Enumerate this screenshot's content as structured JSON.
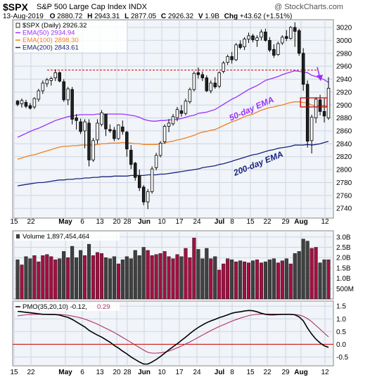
{
  "header": {
    "symbol": "$SPX",
    "name": "S&P 500 Large Cap Index",
    "exchange": "INDX",
    "date": "13-Aug-2019",
    "open_label": "O",
    "open": "2880.72",
    "high_label": "H",
    "high": "2943.31",
    "low_label": "L",
    "low": "2877.05",
    "close_label": "C",
    "close": "2926.32",
    "volume_label": "V",
    "volume": "1.9B",
    "change_label": "Chg",
    "change": "+43.62 (+1.51%)",
    "watermark": "@ StockCharts.com"
  },
  "colors": {
    "up_candle": "#ffffff",
    "down_candle": "#222222",
    "ema50": "#9b30ff",
    "ema100": "#f08020",
    "ema200": "#1a237e",
    "pmo": "#000000",
    "pmo_signal": "#b03060",
    "vol_up": "#a01040",
    "vol_down": "#404040",
    "resistance": "#d00000",
    "panel_bg": "#f1f4f8",
    "grid": "#cdd6e3"
  },
  "chart_data": [
    {
      "type": "candlestick",
      "title": "$SPX (Daily) 2926.32",
      "legend": [
        {
          "label": "$SPX (Daily)",
          "value": "2926.32"
        },
        {
          "label": "EMA(50)",
          "value": "2934.94"
        },
        {
          "label": "EMA(100)",
          "value": "2898.30"
        },
        {
          "label": "EMA(200)",
          "value": "2843.61"
        }
      ],
      "y_ticks": [
        2740,
        2760,
        2780,
        2800,
        2820,
        2840,
        2860,
        2880,
        2900,
        2920,
        2940,
        2960,
        2980,
        3000,
        3020
      ],
      "ylim": [
        2725,
        3032
      ],
      "x_tick_labels": [
        {
          "label": "15",
          "bold": false
        },
        {
          "label": "22",
          "bold": false
        },
        {
          "label": "May",
          "bold": true
        },
        {
          "label": "6",
          "bold": false
        },
        {
          "label": "13",
          "bold": false
        },
        {
          "label": "20",
          "bold": false
        },
        {
          "label": "28",
          "bold": false
        },
        {
          "label": "Jun",
          "bold": true
        },
        {
          "label": "10",
          "bold": false
        },
        {
          "label": "17",
          "bold": false
        },
        {
          "label": "24",
          "bold": false
        },
        {
          "label": "Jul",
          "bold": true
        },
        {
          "label": "8",
          "bold": false
        },
        {
          "label": "15",
          "bold": false
        },
        {
          "label": "22",
          "bold": false
        },
        {
          "label": "29",
          "bold": false
        },
        {
          "label": "Aug",
          "bold": true
        },
        {
          "label": "12",
          "bold": false
        }
      ],
      "candles": [
        [
          2906,
          2908,
          2898,
          2901
        ],
        [
          2902,
          2910,
          2896,
          2907
        ],
        [
          2904,
          2908,
          2895,
          2898
        ],
        [
          2899,
          2903,
          2893,
          2895
        ],
        [
          2897,
          2912,
          2894,
          2910
        ],
        [
          2909,
          2925,
          2905,
          2922
        ],
        [
          2922,
          2938,
          2917,
          2934
        ],
        [
          2933,
          2942,
          2928,
          2939
        ],
        [
          2938,
          2944,
          2930,
          2941
        ],
        [
          2942,
          2955,
          2937,
          2950
        ],
        [
          2950,
          2952,
          2935,
          2937
        ],
        [
          2936,
          2940,
          2905,
          2908
        ],
        [
          2908,
          2928,
          2900,
          2925
        ],
        [
          2924,
          2928,
          2870,
          2878
        ],
        [
          2880,
          2886,
          2862,
          2876
        ],
        [
          2874,
          2879,
          2855,
          2859
        ],
        [
          2860,
          2878,
          2833,
          2874
        ],
        [
          2872,
          2878,
          2805,
          2815
        ],
        [
          2815,
          2849,
          2812,
          2845
        ],
        [
          2846,
          2878,
          2840,
          2872
        ],
        [
          2870,
          2892,
          2867,
          2888
        ],
        [
          2886,
          2886,
          2852,
          2863
        ],
        [
          2862,
          2870,
          2857,
          2860
        ],
        [
          2861,
          2866,
          2844,
          2848
        ],
        [
          2848,
          2870,
          2846,
          2869
        ],
        [
          2866,
          2876,
          2854,
          2859
        ],
        [
          2858,
          2860,
          2820,
          2832
        ],
        [
          2830,
          2838,
          2801,
          2808
        ],
        [
          2810,
          2812,
          2783,
          2788
        ],
        [
          2790,
          2800,
          2767,
          2772
        ],
        [
          2773,
          2776,
          2745,
          2750
        ],
        [
          2750,
          2770,
          2739,
          2766
        ],
        [
          2766,
          2805,
          2763,
          2801
        ],
        [
          2803,
          2826,
          2799,
          2822
        ],
        [
          2822,
          2844,
          2819,
          2841
        ],
        [
          2843,
          2870,
          2840,
          2867
        ],
        [
          2867,
          2878,
          2858,
          2872
        ],
        [
          2871,
          2886,
          2868,
          2882
        ],
        [
          2880,
          2897,
          2875,
          2893
        ],
        [
          2891,
          2900,
          2882,
          2887
        ],
        [
          2887,
          2910,
          2884,
          2906
        ],
        [
          2905,
          2927,
          2902,
          2924
        ],
        [
          2924,
          2952,
          2921,
          2949
        ],
        [
          2950,
          2958,
          2941,
          2947
        ],
        [
          2947,
          2952,
          2937,
          2942
        ],
        [
          2942,
          2946,
          2920,
          2922
        ],
        [
          2922,
          2938,
          2918,
          2934
        ],
        [
          2934,
          2943,
          2925,
          2928
        ],
        [
          2929,
          2952,
          2926,
          2950
        ],
        [
          2952,
          2968,
          2949,
          2965
        ],
        [
          2966,
          2978,
          2962,
          2975
        ],
        [
          2975,
          2982,
          2964,
          2970
        ],
        [
          2970,
          2996,
          2968,
          2993
        ],
        [
          2994,
          3000,
          2986,
          2989
        ],
        [
          2990,
          3005,
          2985,
          3002
        ],
        [
          3002,
          3012,
          2996,
          3007
        ],
        [
          3007,
          3010,
          2997,
          3001
        ],
        [
          3000,
          3008,
          2990,
          3004
        ],
        [
          3005,
          3017,
          3000,
          3013
        ],
        [
          3013,
          3018,
          2998,
          3000
        ],
        [
          3000,
          3005,
          2982,
          2985
        ],
        [
          2986,
          2994,
          2973,
          2977
        ],
        [
          2978,
          2998,
          2976,
          2995
        ],
        [
          2996,
          3008,
          2993,
          3005
        ],
        [
          3006,
          3016,
          2999,
          3003
        ],
        [
          3003,
          3022,
          3001,
          3020
        ],
        [
          3020,
          3028,
          2990,
          3014
        ],
        [
          3015,
          3018,
          2976,
          2980
        ],
        [
          2980,
          2988,
          2922,
          2932
        ],
        [
          2932,
          2938,
          2834,
          2844
        ],
        [
          2845,
          2885,
          2825,
          2881
        ],
        [
          2880,
          2912,
          2872,
          2909
        ],
        [
          2908,
          2916,
          2884,
          2890
        ],
        [
          2890,
          2910,
          2873,
          2883
        ],
        [
          2880,
          2943,
          2877,
          2926
        ]
      ],
      "ema50": [
        2850,
        2853,
        2856,
        2859,
        2862,
        2864,
        2867,
        2870,
        2873,
        2876,
        2878,
        2880,
        2882,
        2883,
        2884,
        2885,
        2885,
        2885,
        2885,
        2886,
        2886,
        2886,
        2886,
        2886,
        2886,
        2886,
        2885,
        2884,
        2883,
        2881,
        2878,
        2876,
        2875,
        2875,
        2876,
        2876,
        2877,
        2877,
        2878,
        2879,
        2881,
        2883,
        2884,
        2887,
        2888,
        2889,
        2891,
        2893,
        2897,
        2901,
        2905,
        2909,
        2912,
        2916,
        2920,
        2924,
        2927,
        2930,
        2934,
        2938,
        2940,
        2942,
        2944,
        2947,
        2949,
        2951,
        2953,
        2952,
        2951,
        2950,
        2946,
        2944,
        2942,
        2939,
        2935
      ],
      "ema100": [
        2816,
        2818,
        2820,
        2822,
        2823,
        2825,
        2827,
        2829,
        2831,
        2833,
        2835,
        2836,
        2836,
        2837,
        2837,
        2838,
        2838,
        2838,
        2838,
        2839,
        2840,
        2840,
        2841,
        2841,
        2841,
        2842,
        2841,
        2841,
        2840,
        2840,
        2839,
        2839,
        2839,
        2839,
        2840,
        2841,
        2843,
        2844,
        2846,
        2847,
        2849,
        2851,
        2853,
        2856,
        2858,
        2859,
        2861,
        2862,
        2865,
        2868,
        2871,
        2874,
        2876,
        2879,
        2882,
        2884,
        2886,
        2889,
        2892,
        2894,
        2896,
        2897,
        2899,
        2900,
        2902,
        2904,
        2905,
        2905,
        2904,
        2903,
        2900,
        2899,
        2899,
        2899,
        2898
      ],
      "ema200": [
        2775,
        2776,
        2777,
        2778,
        2779,
        2780,
        2780,
        2781,
        2782,
        2783,
        2784,
        2784,
        2785,
        2785,
        2786,
        2786,
        2787,
        2787,
        2788,
        2788,
        2789,
        2789,
        2789,
        2790,
        2790,
        2790,
        2790,
        2791,
        2791,
        2791,
        2791,
        2792,
        2792,
        2792,
        2793,
        2793,
        2794,
        2795,
        2796,
        2797,
        2798,
        2799,
        2800,
        2801,
        2803,
        2804,
        2805,
        2806,
        2808,
        2809,
        2811,
        2813,
        2815,
        2817,
        2819,
        2821,
        2823,
        2824,
        2826,
        2828,
        2830,
        2831,
        2833,
        2834,
        2835,
        2836,
        2838,
        2838,
        2838,
        2839,
        2838,
        2839,
        2840,
        2842,
        2843.61
      ],
      "resistance_line": 2954,
      "annotations": [
        "50-day EMA",
        "200-day EMA"
      ]
    },
    {
      "type": "bar",
      "title": "Volume 1,897,454,464",
      "y_ticks_labels": [
        "3.0B",
        "2.5B",
        "2.0B",
        "1.5B",
        "1.0B",
        "500M"
      ],
      "y_ticks_values": [
        3.0,
        2.5,
        2.0,
        1.5,
        1.0,
        0.5
      ],
      "ylim": [
        0,
        3.3
      ],
      "values": [
        1.9,
        1.65,
        2.05,
        1.95,
        2.1,
        1.8,
        2.1,
        2.15,
        2.05,
        1.9,
        1.95,
        2.3,
        2.0,
        2.55,
        2.0,
        2.35,
        2.1,
        2.65,
        2.1,
        2.25,
        2.2,
        2.0,
        1.95,
        2.05,
        1.7,
        1.9,
        2.05,
        1.95,
        2.35,
        2.1,
        2.5,
        2.35,
        2.1,
        2.15,
        2.2,
        2.3,
        2.05,
        1.95,
        2.15,
        2.05,
        2.45,
        2.0,
        2.95,
        2.4,
        1.95,
        2.45,
        1.95,
        2.05,
        1.4,
        1.7,
        1.95,
        1.9,
        1.8,
        1.85,
        1.8,
        1.75,
        1.85,
        1.9,
        1.75,
        1.8,
        1.9,
        1.95,
        1.75,
        1.85,
        1.95,
        1.7,
        2.2,
        2.3,
        2.9,
        2.8,
        2.45,
        2.5,
        1.75,
        1.9,
        1.9
      ]
    },
    {
      "type": "line",
      "title": "PMO(35,20,10)",
      "pmo_value": "-0.12",
      "signal_value": "0.29",
      "y_ticks": [
        1.5,
        1.0,
        0.5,
        0.0,
        -0.5
      ],
      "y_tick_labels": [
        "1.5",
        "1.0",
        "0.5",
        "0.0",
        "-0.5"
      ],
      "ylim": [
        -0.85,
        1.7
      ],
      "series": [
        {
          "values": [
            1.3,
            1.28,
            1.26,
            1.24,
            1.22,
            1.2,
            1.18,
            1.18,
            1.17,
            1.17,
            1.15,
            1.1,
            1.06,
            0.98,
            0.88,
            0.78,
            0.68,
            0.55,
            0.45,
            0.36,
            0.28,
            0.18,
            0.08,
            -0.05,
            -0.15,
            -0.27,
            -0.38,
            -0.5,
            -0.6,
            -0.7,
            -0.78,
            -0.78,
            -0.7,
            -0.6,
            -0.48,
            -0.35,
            -0.22,
            -0.1,
            0.02,
            0.15,
            0.28,
            0.42,
            0.55,
            0.66,
            0.76,
            0.85,
            0.92,
            0.98,
            1.05,
            1.1,
            1.16,
            1.22,
            1.26,
            1.28,
            1.31,
            1.33,
            1.32,
            1.28,
            1.22,
            1.18,
            1.16,
            1.16,
            1.17,
            1.18,
            1.18,
            1.18,
            1.16,
            1.08,
            0.92,
            0.64,
            0.4,
            0.2,
            0.05,
            -0.06,
            -0.12
          ]
        },
        {
          "values": [
            1.12,
            1.14,
            1.16,
            1.17,
            1.18,
            1.18,
            1.18,
            1.18,
            1.18,
            1.17,
            1.17,
            1.16,
            1.14,
            1.11,
            1.08,
            1.04,
            0.99,
            0.93,
            0.86,
            0.79,
            0.71,
            0.63,
            0.55,
            0.46,
            0.37,
            0.27,
            0.17,
            0.07,
            -0.03,
            -0.13,
            -0.23,
            -0.32,
            -0.35,
            -0.35,
            -0.34,
            -0.31,
            -0.27,
            -0.21,
            -0.14,
            -0.07,
            0.01,
            0.09,
            0.18,
            0.27,
            0.36,
            0.45,
            0.54,
            0.62,
            0.7,
            0.77,
            0.84,
            0.91,
            0.97,
            1.03,
            1.08,
            1.13,
            1.16,
            1.18,
            1.19,
            1.19,
            1.19,
            1.19,
            1.18,
            1.18,
            1.18,
            1.18,
            1.17,
            1.15,
            1.1,
            1.01,
            0.89,
            0.74,
            0.59,
            0.44,
            0.29
          ]
        }
      ]
    }
  ]
}
